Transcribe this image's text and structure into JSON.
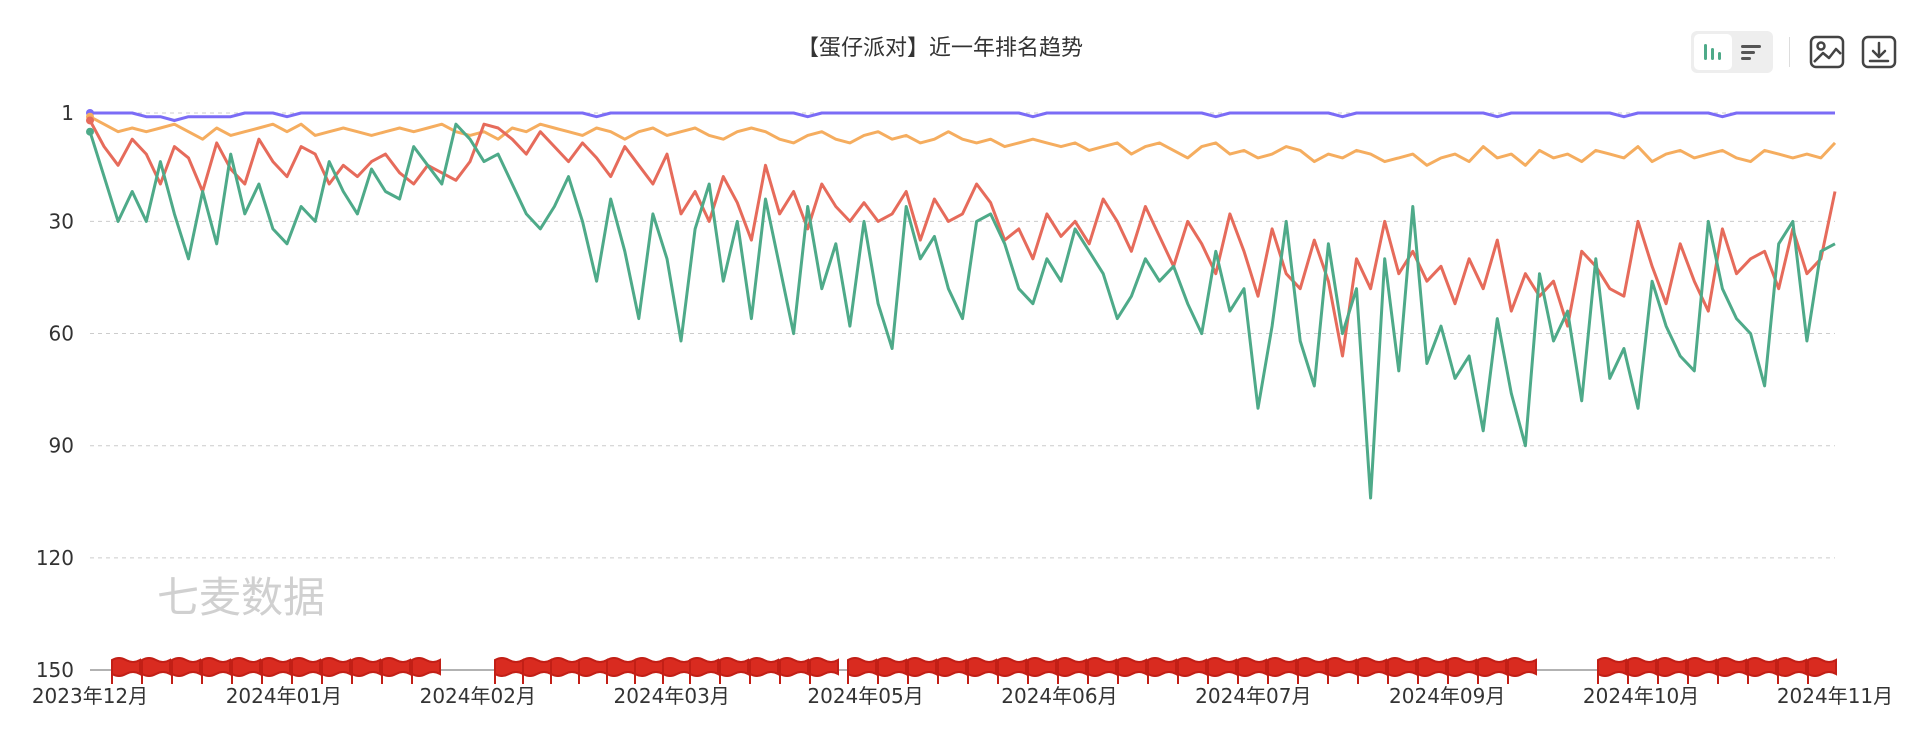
{
  "title": "【蛋仔派对】近一年排名趋势",
  "watermark": "七麦数据",
  "toolbar": {
    "icons": [
      "bar-chart-icon",
      "list-icon",
      "image-icon",
      "download-icon"
    ],
    "active": "bar-chart-icon"
  },
  "chart_data": {
    "type": "line",
    "y_inverted": true,
    "ylim": [
      1,
      150
    ],
    "y_ticks": [
      1,
      30,
      60,
      90,
      120,
      150
    ],
    "grid": true,
    "x_labels": [
      "2023年12月",
      "2024年01月",
      "2024年02月",
      "2024年03月",
      "2024年05月",
      "2024年06月",
      "2024年07月",
      "2024年09月",
      "2024年10月",
      "2024年11月"
    ],
    "series": [
      {
        "color": "#7b6cf6",
        "values": [
          1,
          1,
          1,
          1,
          2,
          2,
          3,
          2,
          2,
          2,
          2,
          1,
          1,
          1,
          2,
          1,
          1,
          1,
          1,
          1,
          1,
          1,
          1,
          1,
          1,
          1,
          1,
          1,
          1,
          1,
          1,
          1,
          1,
          1,
          1,
          1,
          2,
          1,
          1,
          1,
          1,
          1,
          1,
          1,
          1,
          1,
          1,
          1,
          1,
          1,
          1,
          2,
          1,
          1,
          1,
          1,
          1,
          1,
          1,
          1,
          1,
          1,
          1,
          1,
          1,
          1,
          1,
          2,
          1,
          1,
          1,
          1,
          1,
          1,
          1,
          1,
          1,
          1,
          1,
          1,
          2,
          1,
          1,
          1,
          1,
          1,
          1,
          1,
          1,
          2,
          1,
          1,
          1,
          1,
          1,
          1,
          1,
          1,
          1,
          1,
          2,
          1,
          1,
          1,
          1,
          1,
          1,
          1,
          1,
          2,
          1,
          1,
          1,
          1,
          1,
          1,
          2,
          1,
          1,
          1,
          1,
          1,
          1,
          1,
          1
        ]
      },
      {
        "color": "#f5ad5f",
        "values": [
          2,
          4,
          6,
          5,
          6,
          5,
          4,
          6,
          8,
          5,
          7,
          6,
          5,
          4,
          6,
          4,
          7,
          6,
          5,
          6,
          7,
          6,
          5,
          6,
          5,
          4,
          6,
          7,
          6,
          8,
          5,
          6,
          4,
          5,
          6,
          7,
          5,
          6,
          8,
          6,
          5,
          7,
          6,
          5,
          7,
          8,
          6,
          5,
          6,
          8,
          9,
          7,
          6,
          8,
          9,
          7,
          6,
          8,
          7,
          9,
          8,
          6,
          8,
          9,
          8,
          10,
          9,
          8,
          9,
          10,
          9,
          11,
          10,
          9,
          12,
          10,
          9,
          11,
          13,
          10,
          9,
          12,
          11,
          13,
          12,
          10,
          11,
          14,
          12,
          13,
          11,
          12,
          14,
          13,
          12,
          15,
          13,
          12,
          14,
          10,
          13,
          12,
          15,
          11,
          13,
          12,
          14,
          11,
          12,
          13,
          10,
          14,
          12,
          11,
          13,
          12,
          11,
          13,
          14,
          11,
          12,
          13,
          12,
          13,
          9
        ]
      },
      {
        "color": "#e66b5b",
        "values": [
          3,
          10,
          15,
          8,
          12,
          20,
          10,
          13,
          22,
          9,
          16,
          20,
          8,
          14,
          18,
          10,
          12,
          20,
          15,
          18,
          14,
          12,
          17,
          20,
          15,
          17,
          19,
          14,
          4,
          5,
          8,
          12,
          6,
          10,
          14,
          9,
          13,
          18,
          10,
          15,
          20,
          12,
          28,
          22,
          30,
          18,
          25,
          35,
          15,
          28,
          22,
          32,
          20,
          26,
          30,
          25,
          30,
          28,
          22,
          35,
          24,
          30,
          28,
          20,
          25,
          35,
          32,
          40,
          28,
          34,
          30,
          36,
          24,
          30,
          38,
          26,
          34,
          42,
          30,
          36,
          44,
          28,
          38,
          50,
          32,
          44,
          48,
          35,
          46,
          66,
          40,
          48,
          30,
          44,
          38,
          46,
          42,
          52,
          40,
          48,
          35,
          54,
          44,
          50,
          46,
          58,
          38,
          42,
          48,
          50,
          30,
          42,
          52,
          36,
          46,
          54,
          32,
          44,
          40,
          38,
          48,
          32,
          44,
          40,
          22
        ]
      },
      {
        "color": "#4eaa89",
        "values": [
          6,
          18,
          30,
          22,
          30,
          14,
          28,
          40,
          22,
          36,
          12,
          28,
          20,
          32,
          36,
          26,
          30,
          14,
          22,
          28,
          16,
          22,
          24,
          10,
          15,
          20,
          4,
          8,
          14,
          12,
          20,
          28,
          32,
          26,
          18,
          30,
          46,
          24,
          38,
          56,
          28,
          40,
          62,
          32,
          20,
          46,
          30,
          56,
          24,
          42,
          60,
          26,
          48,
          36,
          58,
          30,
          52,
          64,
          26,
          40,
          34,
          48,
          56,
          30,
          28,
          36,
          48,
          52,
          40,
          46,
          32,
          38,
          44,
          56,
          50,
          40,
          46,
          42,
          52,
          60,
          38,
          54,
          48,
          80,
          58,
          30,
          62,
          74,
          36,
          60,
          48,
          104,
          40,
          70,
          26,
          68,
          58,
          72,
          66,
          86,
          56,
          76,
          90,
          44,
          62,
          54,
          78,
          40,
          72,
          64,
          80,
          46,
          58,
          66,
          70,
          30,
          48,
          56,
          60,
          74,
          36,
          30,
          62,
          38,
          36
        ]
      }
    ]
  }
}
